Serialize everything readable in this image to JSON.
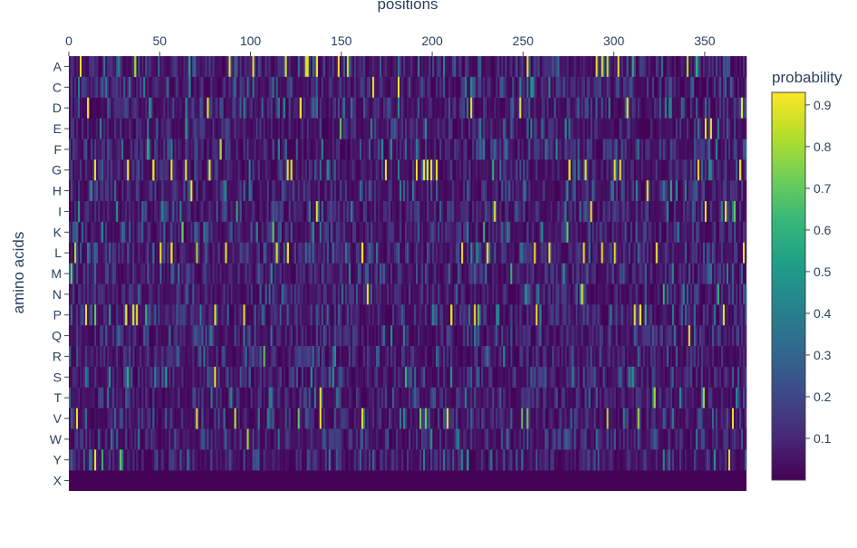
{
  "chart_data": {
    "type": "heatmap",
    "title": "",
    "xlabel": "positions",
    "ylabel": "amino acids",
    "xlim": [
      0,
      373
    ],
    "x_ticks": [
      0,
      50,
      100,
      150,
      200,
      250,
      300,
      350
    ],
    "x_axis_side": "top",
    "num_positions": 373,
    "rows": [
      "A",
      "C",
      "D",
      "E",
      "F",
      "G",
      "H",
      "I",
      "K",
      "L",
      "M",
      "N",
      "P",
      "Q",
      "R",
      "S",
      "T",
      "V",
      "W",
      "Y",
      "X"
    ],
    "colorscale": "viridis",
    "colorscale_stops": [
      "#440154",
      "#482878",
      "#3e4989",
      "#31688e",
      "#26828e",
      "#1f9e89",
      "#35b779",
      "#6ece58",
      "#b5de2b",
      "#fde725"
    ],
    "zmin": 0,
    "zmax": 0.93,
    "colorbar": {
      "title": "probability",
      "ticks": [
        0.1,
        0.2,
        0.3,
        0.4,
        0.5,
        0.6,
        0.7,
        0.8,
        0.9
      ],
      "placement": "right"
    },
    "highlights": {
      "A": [
        [
          6,
          0.9
        ],
        [
          36,
          0.8
        ],
        [
          66,
          0.55
        ],
        [
          88,
          0.9
        ],
        [
          101,
          0.9
        ],
        [
          119,
          0.9
        ],
        [
          130,
          0.88
        ],
        [
          131,
          0.88
        ],
        [
          136,
          0.9
        ],
        [
          148,
          0.92
        ],
        [
          153,
          0.85
        ],
        [
          252,
          0.9
        ],
        [
          290,
          0.9
        ],
        [
          293,
          0.9
        ],
        [
          296,
          0.85
        ],
        [
          302,
          0.9
        ],
        [
          310,
          0.6
        ],
        [
          340,
          0.8
        ],
        [
          345,
          0.6
        ]
      ],
      "C": [
        [
          167,
          0.9
        ],
        [
          181,
          0.9
        ],
        [
          254,
          0.5
        ]
      ],
      "D": [
        [
          10,
          0.9
        ],
        [
          44,
          0.5
        ],
        [
          76,
          0.9
        ],
        [
          127,
          0.9
        ],
        [
          221,
          0.9
        ],
        [
          248,
          0.9
        ],
        [
          307,
          0.9
        ],
        [
          370,
          0.9
        ]
      ],
      "E": [
        [
          64,
          0.5
        ],
        [
          149,
          0.7
        ],
        [
          226,
          0.4
        ],
        [
          350,
          0.9
        ],
        [
          353,
          0.9
        ],
        [
          357,
          0.4
        ]
      ],
      "F": [
        [
          43,
          0.6
        ],
        [
          83,
          0.8
        ],
        [
          268,
          0.5
        ],
        [
          356,
          0.4
        ]
      ],
      "G": [
        [
          14,
          0.9
        ],
        [
          32,
          0.9
        ],
        [
          46,
          0.9
        ],
        [
          56,
          0.9
        ],
        [
          64,
          0.9
        ],
        [
          77,
          0.9
        ],
        [
          120,
          0.9
        ],
        [
          122,
          0.9
        ],
        [
          174,
          0.9
        ],
        [
          191,
          0.9
        ],
        [
          195,
          0.9
        ],
        [
          197,
          0.9
        ],
        [
          199,
          0.9
        ],
        [
          202,
          0.9
        ],
        [
          233,
          0.6
        ],
        [
          275,
          0.9
        ],
        [
          284,
          0.9
        ],
        [
          300,
          0.9
        ],
        [
          303,
          0.9
        ],
        [
          346,
          0.9
        ],
        [
          369,
          0.9
        ]
      ],
      "H": [
        [
          67,
          0.9
        ],
        [
          318,
          0.9
        ],
        [
          331,
          0.6
        ]
      ],
      "I": [
        [
          5,
          0.5
        ],
        [
          26,
          0.5
        ],
        [
          92,
          0.6
        ],
        [
          136,
          0.9
        ],
        [
          155,
          0.4
        ],
        [
          234,
          0.9
        ],
        [
          287,
          0.9
        ],
        [
          350,
          0.9
        ],
        [
          361,
          0.9
        ],
        [
          366,
          0.7
        ]
      ],
      "K": [
        [
          62,
          0.7
        ],
        [
          112,
          0.7
        ],
        [
          228,
          0.6
        ],
        [
          260,
          0.5
        ],
        [
          274,
          0.7
        ]
      ],
      "L": [
        [
          3,
          0.8
        ],
        [
          50,
          0.9
        ],
        [
          56,
          0.9
        ],
        [
          70,
          0.8
        ],
        [
          86,
          0.9
        ],
        [
          114,
          0.9
        ],
        [
          120,
          0.9
        ],
        [
          161,
          0.9
        ],
        [
          216,
          0.9
        ],
        [
          230,
          0.9
        ],
        [
          256,
          0.9
        ],
        [
          264,
          0.9
        ],
        [
          283,
          0.9
        ],
        [
          293,
          0.9
        ],
        [
          300,
          0.9
        ],
        [
          323,
          0.9
        ],
        [
          371,
          0.9
        ]
      ],
      "M": [
        [
          1,
          0.7
        ],
        [
          243,
          0.6
        ],
        [
          272,
          0.5
        ]
      ],
      "N": [
        [
          164,
          0.9
        ],
        [
          251,
          0.5
        ],
        [
          282,
          0.9
        ],
        [
          327,
          0.6
        ],
        [
          357,
          0.6
        ]
      ],
      "P": [
        [
          9,
          0.9
        ],
        [
          14,
          0.7
        ],
        [
          22,
          0.5
        ],
        [
          31,
          0.9
        ],
        [
          35,
          0.9
        ],
        [
          37,
          0.9
        ],
        [
          42,
          0.6
        ],
        [
          80,
          0.9
        ],
        [
          96,
          0.9
        ],
        [
          210,
          0.9
        ],
        [
          223,
          0.9
        ],
        [
          225,
          0.7
        ],
        [
          257,
          0.9
        ],
        [
          311,
          0.9
        ],
        [
          314,
          0.9
        ],
        [
          317,
          0.6
        ],
        [
          360,
          0.9
        ]
      ],
      "Q": [
        [
          341,
          0.9
        ]
      ],
      "R": [
        [
          107,
          0.7
        ],
        [
          239,
          0.5
        ]
      ],
      "S": [
        [
          22,
          0.5
        ],
        [
          32,
          0.6
        ],
        [
          53,
          0.5
        ],
        [
          80,
          0.9
        ],
        [
          145,
          0.5
        ],
        [
          185,
          0.6
        ],
        [
          210,
          0.5
        ],
        [
          310,
          0.5
        ]
      ],
      "T": [
        [
          138,
          0.9
        ],
        [
          322,
          0.8
        ],
        [
          336,
          0.5
        ],
        [
          349,
          0.8
        ]
      ],
      "V": [
        [
          4,
          0.9
        ],
        [
          70,
          0.9
        ],
        [
          91,
          0.8
        ],
        [
          126,
          0.7
        ],
        [
          138,
          0.9
        ],
        [
          161,
          0.9
        ],
        [
          193,
          0.7
        ],
        [
          196,
          0.7
        ],
        [
          208,
          0.9
        ],
        [
          249,
          0.7
        ],
        [
          252,
          0.7
        ],
        [
          296,
          0.8
        ],
        [
          313,
          0.8
        ],
        [
          365,
          0.9
        ]
      ],
      "W": [
        [
          98,
          0.8
        ]
      ],
      "Y": [
        [
          14,
          0.9
        ],
        [
          18,
          0.6
        ],
        [
          28,
          0.7
        ],
        [
          219,
          0.5
        ],
        [
          355,
          0.5
        ],
        [
          363,
          0.9
        ]
      ],
      "X": []
    }
  }
}
